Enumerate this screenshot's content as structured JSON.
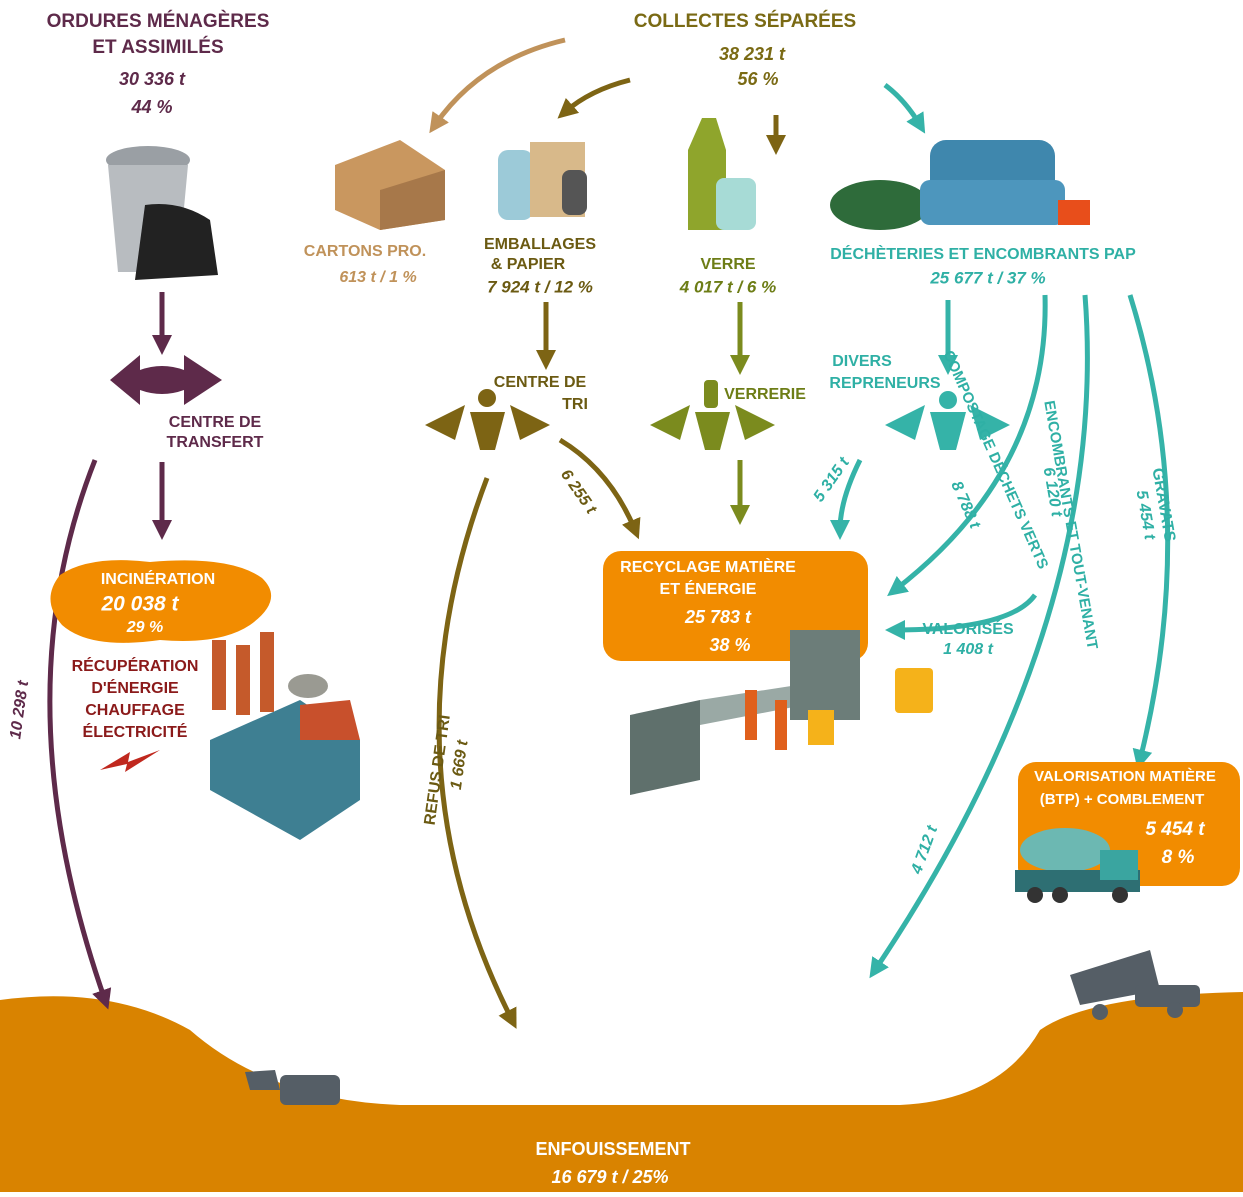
{
  "ordures": {
    "title_lines": [
      "ORDURES MÉNAGÈRES",
      "ET ASSIMILÉS"
    ],
    "tonnage": "30 336 t",
    "share": "44 %"
  },
  "collectes": {
    "title": "COLLECTES SÉPARÉES",
    "tonnage": "38 231 t",
    "share": "56 %"
  },
  "cartons": {
    "label": "CARTONS PRO.",
    "amount": "613 t / 1 %"
  },
  "emballages": {
    "label_lines": [
      "EMBALLAGES",
      "& PAPIER"
    ],
    "amount": "7 924 t / 12 %"
  },
  "verre": {
    "label": "VERRE",
    "amount": "4 017 t / 6 %"
  },
  "decheteries": {
    "label": "DÉCHÈTERIES ET ENCOMBRANTS PAP",
    "amount": "25 677 t / 37 %"
  },
  "centre_transfert": [
    "CENTRE DE",
    "TRANSFERT"
  ],
  "centre_tri": [
    "CENTRE DE",
    "TRI"
  ],
  "verrerie": "VERRERIE",
  "divers_repreneurs": [
    "DIVERS",
    "REPRENEURS"
  ],
  "incineration": {
    "label": "INCINÉRATION",
    "tonnage": "20 038 t",
    "share": "29 %"
  },
  "recuperation": [
    "RÉCUPÉRATION",
    "D'ÉNERGIE",
    "CHAUFFAGE",
    "ÉLECTRICITÉ"
  ],
  "recyclage": {
    "label_lines": [
      "RECYCLAGE MATIÈRE",
      "ET ÉNERGIE"
    ],
    "tonnage": "25 783 t",
    "share": "38 %"
  },
  "valorisation": {
    "label_lines": [
      "VALORISATION MATIÈRE",
      "(BTP) + COMBLEMENT"
    ],
    "tonnage": "5 454 t",
    "share": "8 %"
  },
  "enfouissement": {
    "label": "ENFOUISSEMENT",
    "amount": "16 679 t / 25%"
  },
  "flows": [
    {
      "amount": "10 298 t"
    },
    {
      "label": "REFUS DE TRI",
      "amount": "1 669 t"
    },
    {
      "amount": "6 255 t"
    },
    {
      "amount": "5 315 t"
    },
    {
      "label": "COMPOSTAGE DÉCHETS VERTS",
      "amount": "8 788 t"
    },
    {
      "label": "ENCOMBRANTS ET TOUT-VENANT",
      "amount": "6 120 t"
    },
    {
      "label": "GRAVATS",
      "amount": "5 454 t"
    },
    {
      "label": "VALORISÉS",
      "amount": "1 408 t"
    },
    {
      "amount": "4 712 t"
    }
  ]
}
